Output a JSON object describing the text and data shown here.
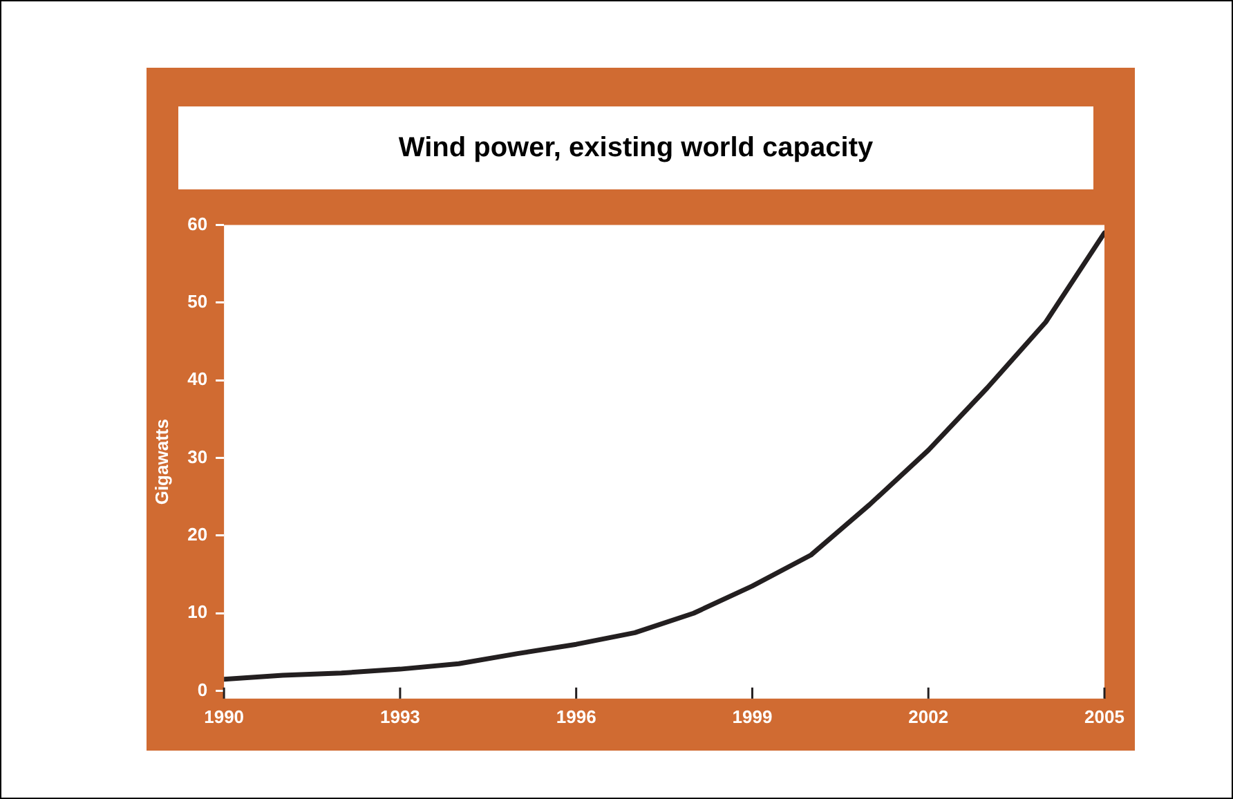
{
  "chart_data": {
    "type": "line",
    "title": "Wind power, existing world capacity",
    "ylabel": "Gigawatts",
    "x": [
      1990,
      1991,
      1992,
      1993,
      1994,
      1995,
      1996,
      1997,
      1998,
      1999,
      2000,
      2001,
      2002,
      2003,
      2004,
      2005
    ],
    "series": [
      {
        "color": "#231f20",
        "values": [
          1.5,
          2,
          2.3,
          2.8,
          3.5,
          4.8,
          6,
          7.5,
          10,
          13.5,
          17.5,
          24,
          31,
          39,
          47.5,
          59
        ]
      }
    ],
    "xlim": [
      1990,
      2005
    ],
    "xticks": [
      1990,
      1993,
      1996,
      1999,
      2002,
      2005
    ],
    "ylim": [
      -1,
      60
    ],
    "yticks": [
      0,
      10,
      20,
      30,
      40,
      50,
      60
    ],
    "grid": false,
    "legend": false,
    "marker": "none",
    "line_style": "solid"
  }
}
